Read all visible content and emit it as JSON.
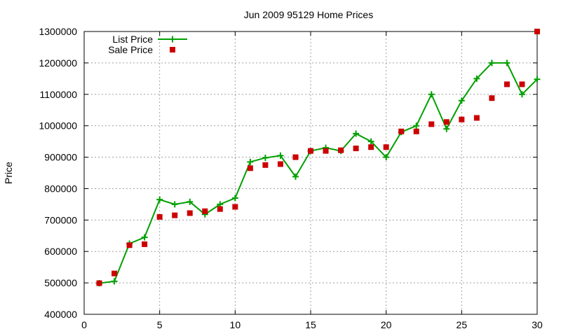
{
  "chart_data": {
    "type": "line",
    "title": "Jun 2009 95129 Home Prices",
    "xlabel": "",
    "ylabel": "Price",
    "xlim": [
      0,
      30
    ],
    "ylim": [
      400000,
      1300000
    ],
    "xticks": [
      0,
      5,
      10,
      15,
      20,
      25,
      30
    ],
    "yticks": [
      400000,
      500000,
      600000,
      700000,
      800000,
      900000,
      1000000,
      1100000,
      1200000,
      1300000
    ],
    "grid": true,
    "legend_position": "top-left",
    "series": [
      {
        "name": "List Price",
        "style": "linespoints",
        "marker": "plus",
        "color": "#00a000",
        "x": [
          1,
          2,
          3,
          4,
          5,
          6,
          7,
          8,
          9,
          10,
          11,
          12,
          13,
          14,
          15,
          16,
          17,
          18,
          19,
          20,
          21,
          22,
          23,
          24,
          25,
          26,
          27,
          28,
          29,
          30
        ],
        "values": [
          499000,
          505000,
          625000,
          645000,
          765000,
          750000,
          758000,
          718000,
          750000,
          770000,
          885000,
          898000,
          905000,
          838000,
          920000,
          930000,
          920000,
          975000,
          950000,
          900000,
          980000,
          1000000,
          1100000,
          990000,
          1080000,
          1150000,
          1200000,
          1200000,
          1100000,
          1148000
        ]
      },
      {
        "name": "Sale Price",
        "style": "points",
        "marker": "square",
        "color": "#cc0000",
        "x": [
          1,
          2,
          3,
          4,
          5,
          6,
          7,
          8,
          9,
          10,
          11,
          12,
          13,
          14,
          15,
          16,
          17,
          18,
          19,
          20,
          21,
          22,
          23,
          24,
          25,
          26,
          27,
          28,
          29,
          30
        ],
        "values": [
          499000,
          530000,
          620000,
          623000,
          710000,
          715000,
          722000,
          728000,
          735000,
          742000,
          865000,
          875000,
          878000,
          900000,
          920000,
          920000,
          922000,
          928000,
          932000,
          932000,
          982000,
          982000,
          1005000,
          1012000,
          1020000,
          1025000,
          1088000,
          1132000,
          1132000,
          1300000
        ]
      }
    ]
  }
}
